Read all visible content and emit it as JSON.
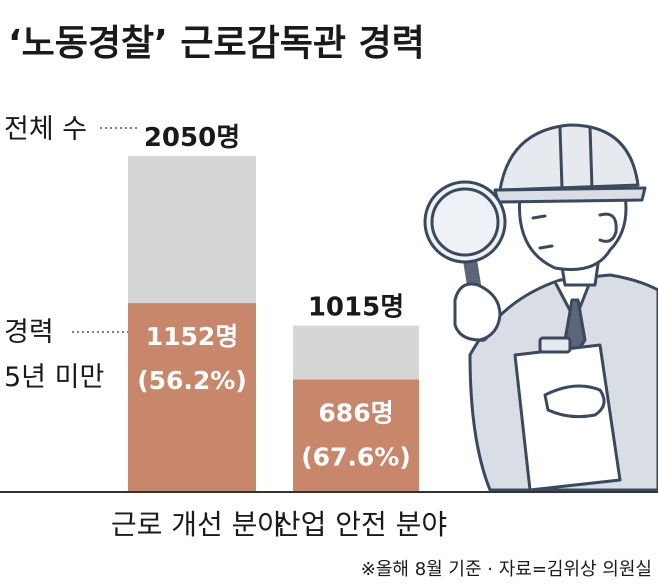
{
  "chart_data": {
    "type": "bar",
    "title": "‘노동경찰’ 근로감독관 경력",
    "categories": [
      "근로 개선 분야",
      "산업 안전 분야"
    ],
    "series": [
      {
        "name": "전체 수",
        "values": [
          2050,
          1015
        ]
      },
      {
        "name": "경력 5년 미만",
        "values": [
          1152,
          686
        ]
      }
    ],
    "total_labels": [
      "2050명",
      "1015명"
    ],
    "sub_labels": [
      {
        "count": "1152명",
        "pct": "(56.2%)"
      },
      {
        "count": "686명",
        "pct": "(67.6%)"
      }
    ],
    "legend": {
      "total": "전체 수",
      "sub_line1": "경력",
      "sub_line2": "5년 미만"
    },
    "source": "※올해 8월 기준 · 자료=김위상 의원실",
    "colors": {
      "total": "#d6d6d6",
      "sub": "#c8866a",
      "baseline": "#333333",
      "text": "#1a1a1a",
      "label_on_bar": "#ffffff"
    }
  },
  "illustration": {
    "icon": "inspector-with-magnifier-icon"
  }
}
